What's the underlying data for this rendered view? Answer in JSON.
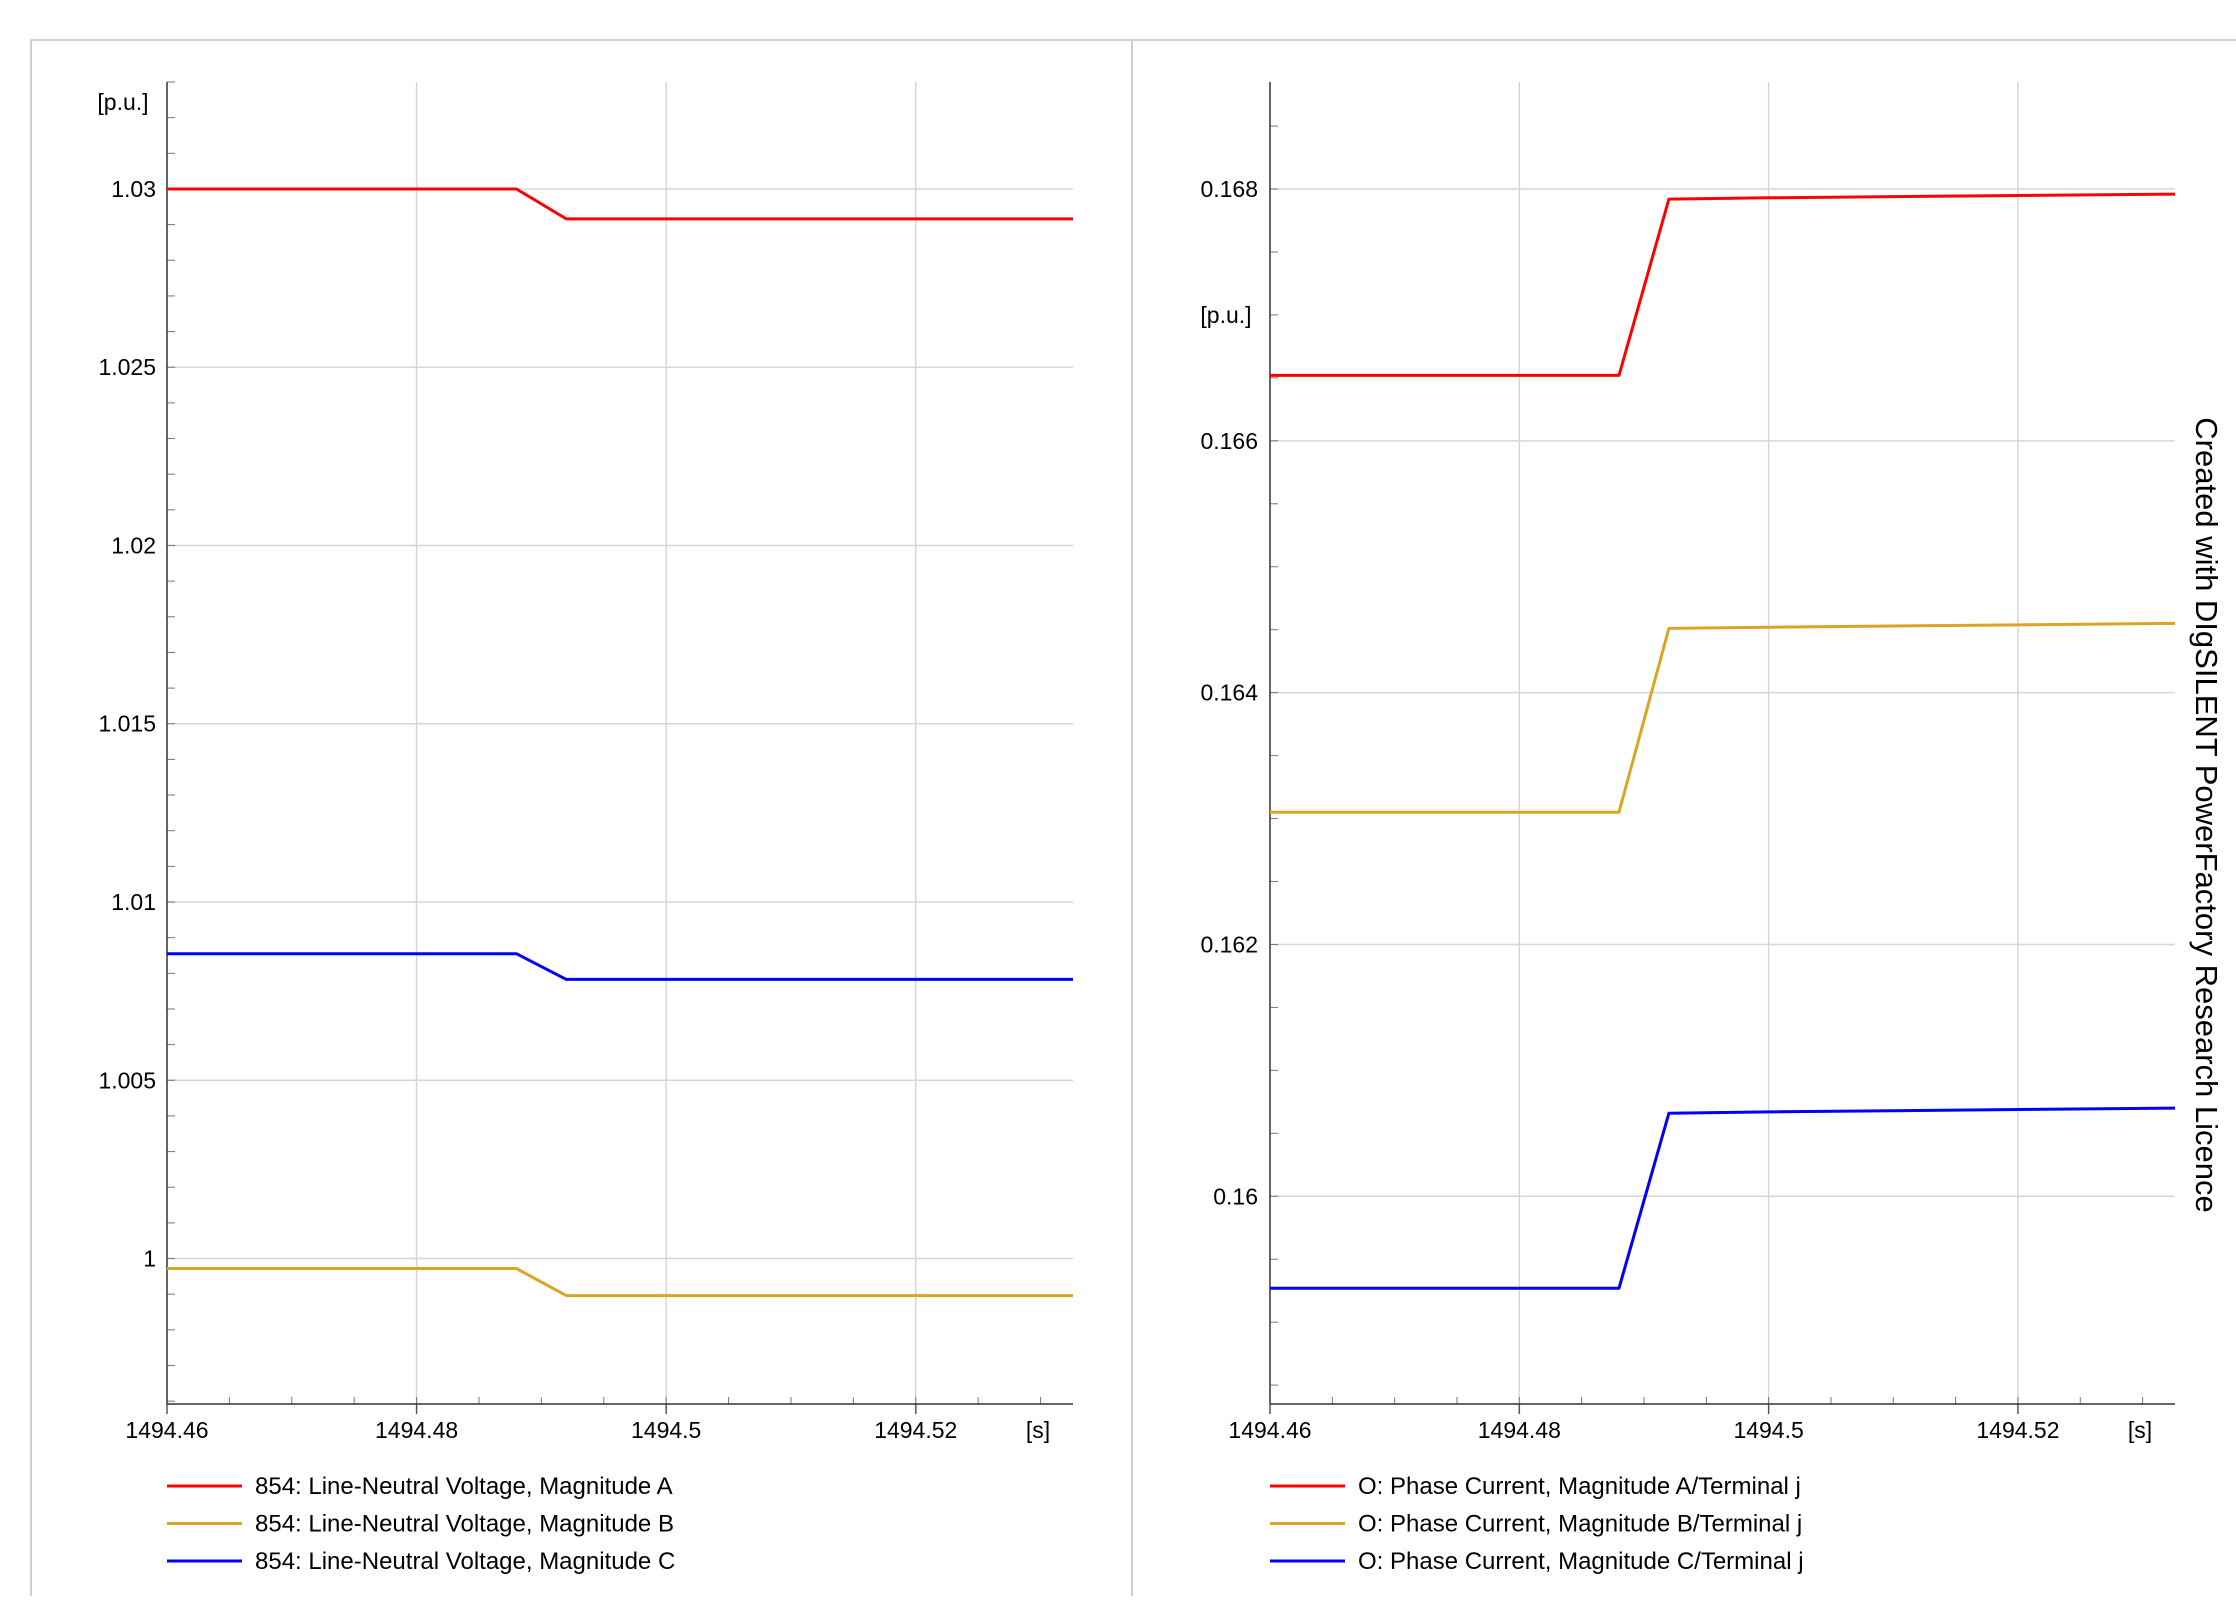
{
  "watermark": "Created with DIgSILENT PowerFactory Research Licence",
  "chart_data": [
    {
      "type": "line",
      "title": "",
      "xlabel": "[s]",
      "ylabel": "[p.u.]",
      "xlim": [
        1494.46,
        1494.5326
      ],
      "ylim": [
        0.99592,
        1.033
      ],
      "x_ticks": [
        "1494.46",
        "1494.48",
        "1494.5",
        "1494.52"
      ],
      "y_ticks": [
        "1",
        "1.005",
        "1.01",
        "1.015",
        "1.02",
        "1.025",
        "1.03"
      ],
      "grid": true,
      "legend_position": "bottom",
      "series": [
        {
          "name": "854: Line-Neutral Voltage, Magnitude A",
          "color": "#ff0000",
          "x": [
            1494.46,
            1494.488,
            1494.492,
            1494.5326
          ],
          "y": [
            1.03,
            1.03,
            1.02916,
            1.02916
          ]
        },
        {
          "name": "854: Line-Neutral Voltage, Magnitude B",
          "color": "#daa520",
          "x": [
            1494.46,
            1494.488,
            1494.492,
            1494.5326
          ],
          "y": [
            0.99972,
            0.99972,
            0.99896,
            0.99896
          ]
        },
        {
          "name": "854: Line-Neutral Voltage, Magnitude C",
          "color": "#0000ff",
          "x": [
            1494.46,
            1494.488,
            1494.492,
            1494.5326
          ],
          "y": [
            1.00855,
            1.00855,
            1.00783,
            1.00783
          ]
        }
      ]
    },
    {
      "type": "line",
      "title": "",
      "xlabel": "[s]",
      "ylabel": "[p.u.]",
      "xlim": [
        1494.46,
        1494.5326
      ],
      "ylim": [
        0.15835,
        0.16885
      ],
      "x_ticks": [
        "1494.46",
        "1494.48",
        "1494.5",
        "1494.52"
      ],
      "y_ticks": [
        "0.16",
        "0.162",
        "0.164",
        "0.166",
        "0.168"
      ],
      "grid": true,
      "legend_position": "bottom",
      "series": [
        {
          "name": "O: Phase Current, Magnitude A/Terminal j",
          "color": "#ff0000",
          "x": [
            1494.46,
            1494.488,
            1494.492,
            1494.5,
            1494.5326
          ],
          "y": [
            0.16652,
            0.16652,
            0.16792,
            0.16793,
            0.16796
          ]
        },
        {
          "name": "O: Phase Current, Magnitude B/Terminal j",
          "color": "#daa520",
          "x": [
            1494.46,
            1494.488,
            1494.492,
            1494.5,
            1494.5326
          ],
          "y": [
            0.16305,
            0.16305,
            0.16451,
            0.16452,
            0.16455
          ]
        },
        {
          "name": "O: Phase Current, Magnitude C/Terminal j",
          "color": "#0000ff",
          "x": [
            1494.46,
            1494.488,
            1494.492,
            1494.5,
            1494.5326
          ],
          "y": [
            0.15927,
            0.15927,
            0.16066,
            0.16067,
            0.1607
          ]
        }
      ]
    }
  ]
}
